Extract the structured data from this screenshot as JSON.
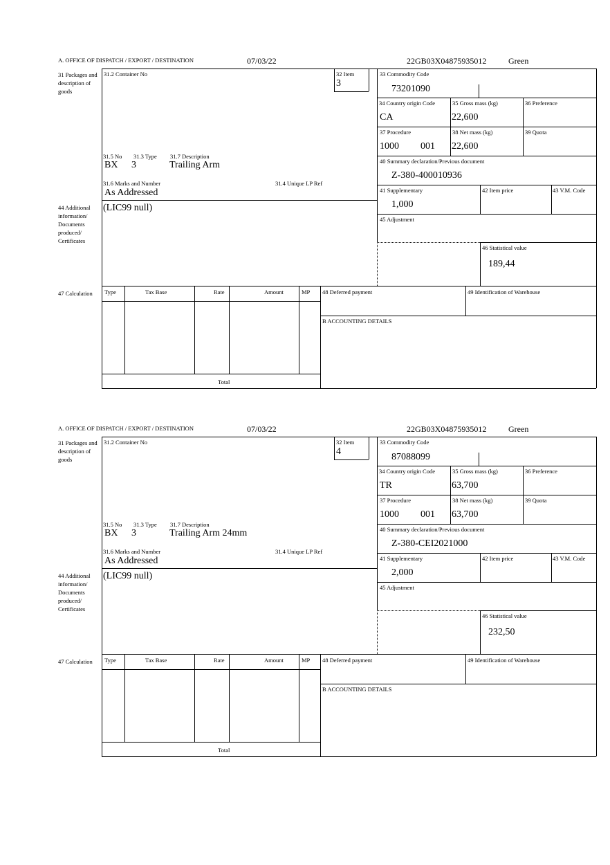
{
  "labels": {
    "office": "A.  OFFICE OF DISPATCH / EXPORT / DESTINATION",
    "box31": "31 Packages and description of goods",
    "box31_2": "31.2 Container No",
    "box32": "32 Item",
    "box31_5": "31.5 No",
    "box31_3": "31.3 Type",
    "box31_7": "31.7 Description",
    "box31_6": "31.6 Marks and Number",
    "box31_4": "31.4 Unique LP Ref",
    "box44": "44 Additional information/ Documents produced/ Certificates",
    "box33": "33 Commodity Code",
    "box34": "34 Country origin Code",
    "box35": "35 Gross mass (kg)",
    "box36": "36 Preference",
    "box37": "37 Procedure",
    "box38": "38 Net mass (kg)",
    "box39": "39 Quota",
    "box40": "40 Summary declaration/Previous document",
    "box41": "41 Supplementary",
    "box42": "42 Item price",
    "box43": "43 V.M. Code",
    "box45": "45 Adjustment",
    "box46": "46 Statistical value",
    "box47": "47 Calculation",
    "calc_headers": [
      "Type",
      "Tax Base",
      "Rate",
      "Amount",
      "MP"
    ],
    "total": "Total",
    "box48": "48 Deferred payment",
    "box49": "49 Identification of Warehouse",
    "boxB": "B ACCOUNTING DETAILS"
  },
  "items": [
    {
      "date": "07/03/22",
      "reference": "22GB03X04875935012",
      "status": "Green",
      "item_no": "3",
      "pkg_kind": "BX",
      "pkg_count": "3",
      "description": "Trailing Arm",
      "marks": "As Addressed",
      "additional_info": "(LIC99 null)",
      "commodity_code": "73201090",
      "country_origin": "CA",
      "gross_mass": "22,600",
      "procedure": "1000",
      "procedure_add": "001",
      "net_mass": "22,600",
      "previous_document": "Z-380-400010936",
      "supplementary": "1,000",
      "statistical_value": "189,44"
    },
    {
      "date": "07/03/22",
      "reference": "22GB03X04875935012",
      "status": "Green",
      "item_no": "4",
      "pkg_kind": "BX",
      "pkg_count": "3",
      "description": "Trailing Arm 24mm",
      "marks": "As Addressed",
      "additional_info": "(LIC99 null)",
      "commodity_code": "87088099",
      "country_origin": "TR",
      "gross_mass": "63,700",
      "procedure": "1000",
      "procedure_add": "001",
      "net_mass": "63,700",
      "previous_document": "Z-380-CEI2021000",
      "supplementary": "2,000",
      "statistical_value": "232,50"
    }
  ]
}
